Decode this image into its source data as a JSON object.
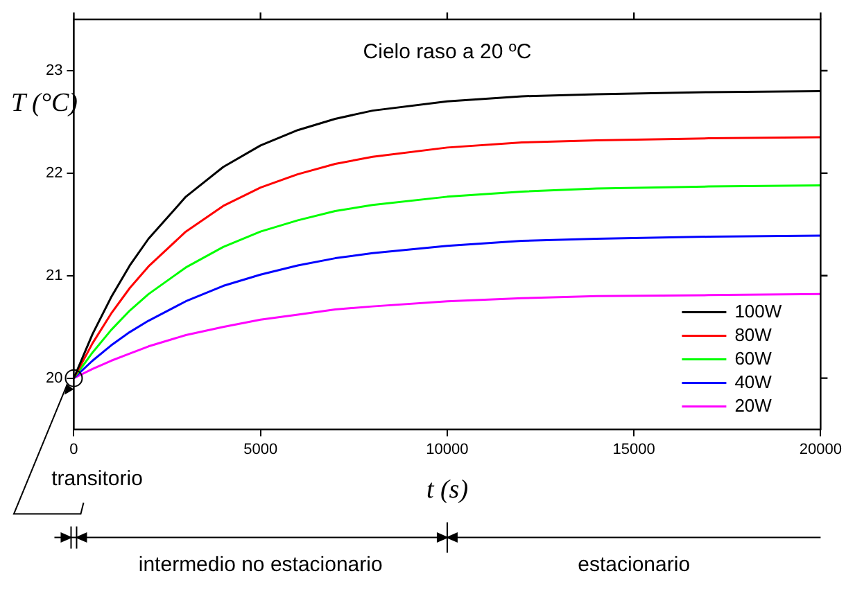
{
  "chart_data": {
    "type": "line",
    "title": "Cielo raso a 20 ºC",
    "xlabel": "t (s)",
    "ylabel": "T (°C)",
    "x": [
      0,
      500,
      1000,
      1500,
      2000,
      3000,
      4000,
      5000,
      6000,
      7000,
      8000,
      10000,
      12000,
      14000,
      17000,
      20000
    ],
    "series": [
      {
        "name": "100W",
        "color": "#000000",
        "values": [
          20,
          20.43,
          20.79,
          21.1,
          21.36,
          21.77,
          22.06,
          22.27,
          22.42,
          22.53,
          22.61,
          22.7,
          22.75,
          22.77,
          22.79,
          22.8
        ]
      },
      {
        "name": "80W",
        "color": "#ff0000",
        "values": [
          20,
          20.34,
          20.63,
          20.88,
          21.09,
          21.43,
          21.68,
          21.86,
          21.99,
          22.09,
          22.16,
          22.25,
          22.3,
          22.32,
          22.34,
          22.35
        ]
      },
      {
        "name": "60W",
        "color": "#00ff00",
        "values": [
          20,
          20.25,
          20.47,
          20.66,
          20.82,
          21.08,
          21.28,
          21.43,
          21.54,
          21.63,
          21.69,
          21.77,
          21.82,
          21.85,
          21.87,
          21.88
        ]
      },
      {
        "name": "40W",
        "color": "#0000ff",
        "values": [
          20,
          20.17,
          20.32,
          20.45,
          20.56,
          20.75,
          20.9,
          21.01,
          21.1,
          21.17,
          21.22,
          21.29,
          21.34,
          21.36,
          21.38,
          21.39
        ]
      },
      {
        "name": "20W",
        "color": "#ff00ff",
        "values": [
          20,
          20.09,
          20.17,
          20.24,
          20.31,
          20.42,
          20.5,
          20.57,
          20.62,
          20.67,
          20.7,
          20.75,
          20.78,
          20.8,
          20.81,
          20.82
        ]
      }
    ],
    "xlim": [
      0,
      20000
    ],
    "xticks": [
      0,
      5000,
      10000,
      15000,
      20000
    ],
    "ylim": [
      19.5,
      23.5
    ],
    "yticks": [
      20,
      21,
      22,
      23
    ],
    "legend": "bottom right",
    "grid": false,
    "marker": "none",
    "line_style": "solid",
    "annotations": [
      {
        "text": "transitorio",
        "x": 0,
        "y": 20
      },
      "intermedio no estacionario",
      "estacionario"
    ]
  }
}
